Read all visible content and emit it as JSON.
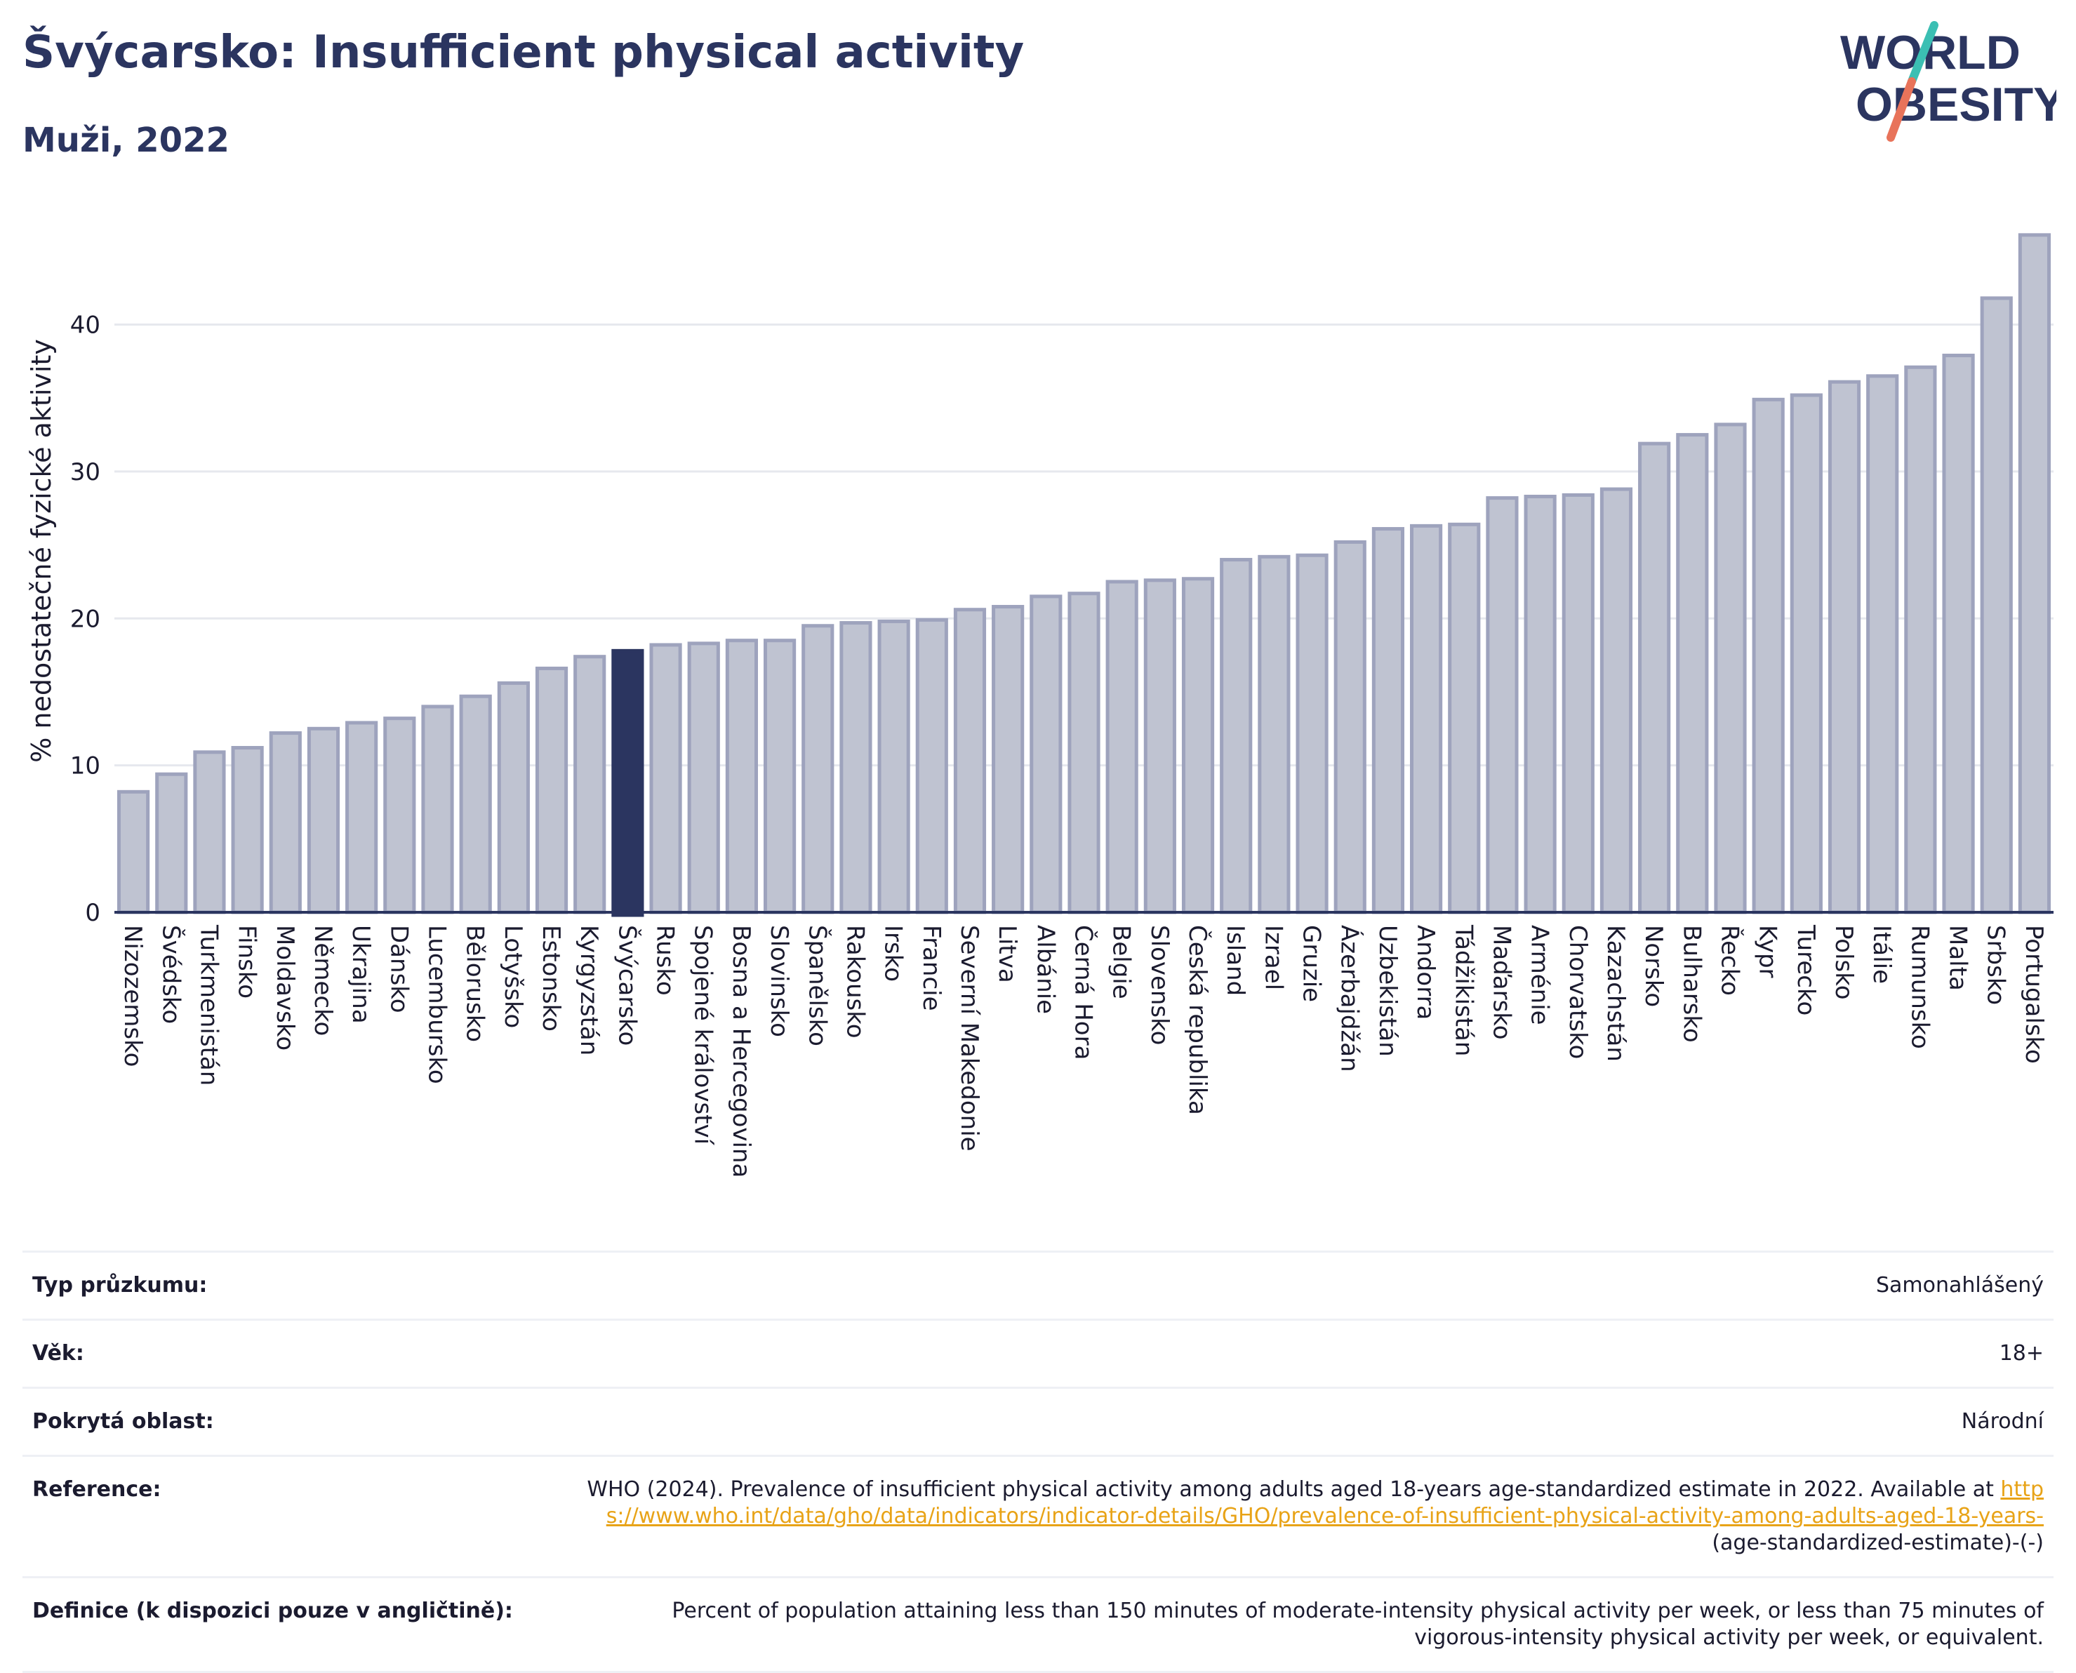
{
  "header": {
    "title": "Švýcarsko: Insufficient physical activity",
    "subtitle": "Muži, 2022"
  },
  "logo": {
    "line1": "WORLD",
    "line2": "OBESITY",
    "colors": {
      "text": "#2b3560",
      "slash_top": "#3bbfb3",
      "slash_bottom": "#e8735a"
    }
  },
  "colors": {
    "bar_fill": "#bfc3d1",
    "bar_stroke": "#9ea3bd",
    "highlight_fill": "#2b3560",
    "grid": "#e6e8ee",
    "axis": "#2b3560",
    "text": "#1b1b2f"
  },
  "chart_data": {
    "type": "bar",
    "ylabel": "% nedostatečné fyzické aktivity",
    "ylim": [
      0,
      47
    ],
    "yticks": [
      0,
      10,
      20,
      30,
      40
    ],
    "grid": true,
    "highlight": "Švýcarsko",
    "categories": [
      "Nizozemsko",
      "Švédsko",
      "Turkmenistán",
      "Finsko",
      "Moldavsko",
      "Německo",
      "Ukrajina",
      "Dánsko",
      "Lucembursko",
      "Bělorusko",
      "Lotyšsko",
      "Estonsko",
      "Kyrgyzstán",
      "Švýcarsko",
      "Rusko",
      "Spojené království",
      "Bosna a Hercegovina",
      "Slovinsko",
      "Španělsko",
      "Rakousko",
      "Irsko",
      "Francie",
      "Severní Makedonie",
      "Litva",
      "Albánie",
      "Černá Hora",
      "Belgie",
      "Slovensko",
      "Česká republika",
      "Island",
      "Izrael",
      "Gruzie",
      "Ázerbajdžán",
      "Uzbekistán",
      "Andorra",
      "Tádžikistán",
      "Maďarsko",
      "Arménie",
      "Chorvatsko",
      "Kazachstán",
      "Norsko",
      "Bulharsko",
      "Řecko",
      "Kypr",
      "Turecko",
      "Polsko",
      "Itálie",
      "Rumunsko",
      "Malta",
      "Srbsko",
      "Portugalsko"
    ],
    "values": [
      8.2,
      9.4,
      10.9,
      11.2,
      12.2,
      12.5,
      12.9,
      13.2,
      14.0,
      14.7,
      15.6,
      16.6,
      17.4,
      17.8,
      18.2,
      18.3,
      18.5,
      18.5,
      19.5,
      19.7,
      19.8,
      19.9,
      20.6,
      20.8,
      21.5,
      21.7,
      22.5,
      22.6,
      22.7,
      24.0,
      24.2,
      24.3,
      25.2,
      26.1,
      26.3,
      26.4,
      28.2,
      28.3,
      28.4,
      28.8,
      31.9,
      32.5,
      33.2,
      34.9,
      35.2,
      36.1,
      36.5,
      37.1,
      37.9,
      41.8,
      46.1
    ]
  },
  "info": {
    "survey_label": "Typ průzkumu:",
    "survey_value": "Samonahlášený",
    "age_label": "Věk:",
    "age_value": "18+",
    "coverage_label": "Pokrytá oblast:",
    "coverage_value": "Národní",
    "reference_label": "Reference:",
    "reference_text": "WHO (2024). Prevalence of insufficient physical activity among adults aged 18-years age-standardized estimate in 2022. Available at",
    "reference_link": "https://www.who.int/data/gho/data/indicators/indicator-details/GHO/prevalence-of-insufficient-physical-activity-among-adults-aged-18-years-",
    "reference_suffix": "(age-standardized-estimate)-(-)",
    "definition_label": "Definice (k dispozici pouze v angličtině):",
    "definition_value": "Percent of population attaining less than 150 minutes of moderate-intensity physical activity per week, or less than 75 minutes of vigorous-intensity physical activity per week, or equivalent."
  }
}
